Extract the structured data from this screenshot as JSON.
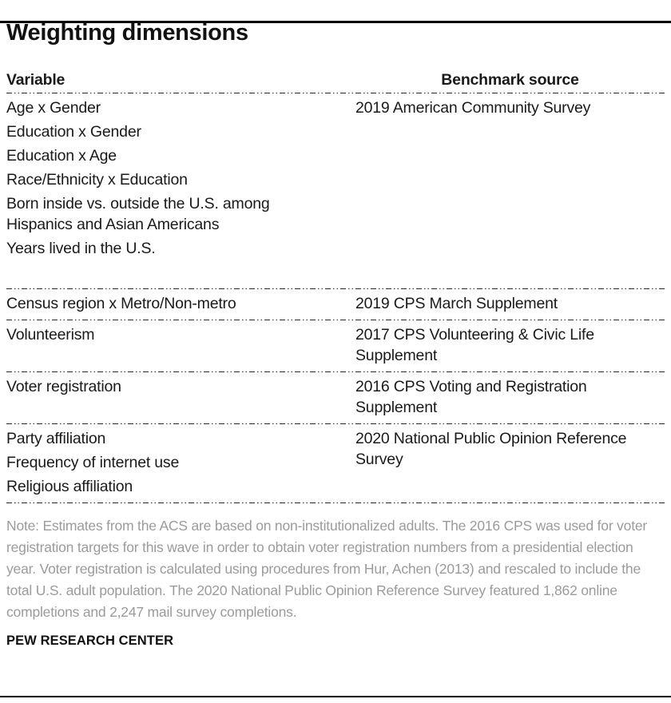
{
  "title": "Weighting dimensions",
  "table": {
    "header": {
      "variable": "Variable",
      "source": "Benchmark source"
    },
    "groups": [
      {
        "variables": [
          "Age x Gender",
          "Education x Gender",
          "Education x Age",
          "Race/Ethnicity x Education",
          "Born inside vs. outside the U.S. among Hispanics and Asian Americans",
          "Years lived in the U.S."
        ],
        "source": "2019 American Community Survey"
      },
      {
        "variables": [
          "Census region x Metro/Non-metro"
        ],
        "source": "2019 CPS March Supplement"
      },
      {
        "variables": [
          "Volunteerism"
        ],
        "source": "2017 CPS Volunteering & Civic Life Supplement"
      },
      {
        "variables": [
          "Voter registration"
        ],
        "source": "2016 CPS Voting and Registration Supplement"
      },
      {
        "variables": [
          "Party affiliation",
          "Frequency of internet use",
          "Religious affiliation"
        ],
        "source": "2020 National Public Opinion Reference Survey"
      }
    ]
  },
  "note": "Note: Estimates from the ACS are based on non-institutionalized adults.  The 2016 CPS was used for voter registration targets for this wave in order to obtain voter registration numbers from a presidential election year. Voter registration is calculated using procedures from Hur, Achen (2013) and rescaled to include the total U.S. adult population. The 2020 National Public Opinion Reference Survey featured 1,862 online completions and 2,247 mail survey completions.",
  "footer": "PEW RESEARCH CENTER",
  "colors": {
    "text": "#1a1a1a",
    "note_gray": "#9b9b9b",
    "rule_black": "#000000"
  }
}
